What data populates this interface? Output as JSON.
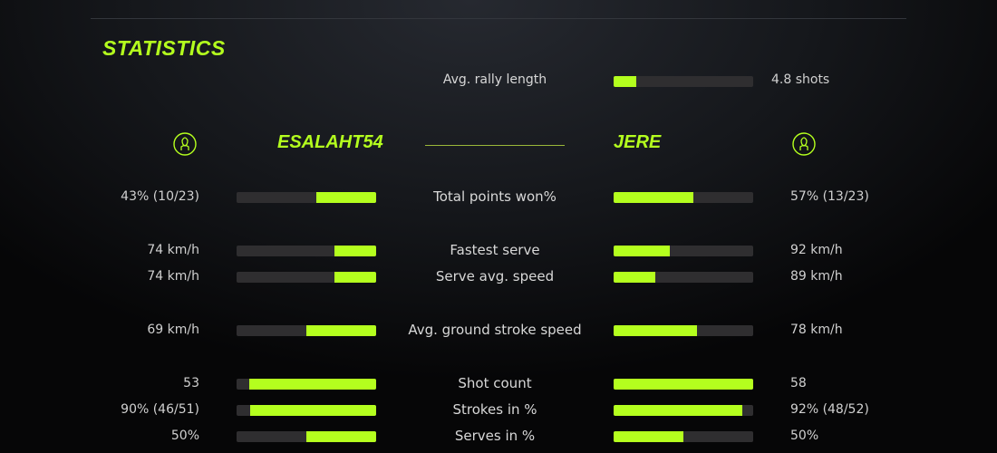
{
  "title": "STATISTICS",
  "colors": {
    "accent": "#b4ff1e",
    "bar_track": "#2f2e30"
  },
  "rally": {
    "label": "Avg. rally length",
    "value": "4.8 shots",
    "fraction": 0.16
  },
  "players": {
    "left": {
      "name": "ESALAHT54",
      "icon": "user-avatar-icon"
    },
    "right": {
      "name": "JERE",
      "icon": "user-avatar-icon"
    }
  },
  "stats": [
    {
      "label": "Total points won%",
      "left": "43% (10/23)",
      "right": "57% (13/23)",
      "left_fraction": 0.43,
      "right_fraction": 0.57
    },
    {
      "label": "Fastest serve",
      "left": "74 km/h",
      "right": "92 km/h",
      "left_fraction": 0.3,
      "right_fraction": 0.4
    },
    {
      "label": "Serve avg. speed",
      "left": "74 km/h",
      "right": "89 km/h",
      "left_fraction": 0.3,
      "right_fraction": 0.3
    },
    {
      "label": "Avg. ground stroke speed",
      "left": "69 km/h",
      "right": "78 km/h",
      "left_fraction": 0.5,
      "right_fraction": 0.6
    },
    {
      "label": "Shot count",
      "left": "53",
      "right": "58",
      "left_fraction": 0.91,
      "right_fraction": 1.0
    },
    {
      "label": "Strokes in %",
      "left": "90% (46/51)",
      "right": "92% (48/52)",
      "left_fraction": 0.9,
      "right_fraction": 0.92
    },
    {
      "label": "Serves in %",
      "left": "50%",
      "right": "50%",
      "left_fraction": 0.5,
      "right_fraction": 0.5
    }
  ]
}
